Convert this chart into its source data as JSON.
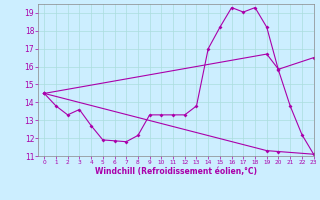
{
  "bg_color": "#cceeff",
  "line_color": "#aa00aa",
  "grid_color": "#aadddd",
  "xlabel": "Windchill (Refroidissement éolien,°C)",
  "xlim": [
    -0.5,
    23
  ],
  "ylim": [
    11,
    19.5
  ],
  "yticks": [
    11,
    12,
    13,
    14,
    15,
    16,
    17,
    18,
    19
  ],
  "xticks": [
    0,
    1,
    2,
    3,
    4,
    5,
    6,
    7,
    8,
    9,
    10,
    11,
    12,
    13,
    14,
    15,
    16,
    17,
    18,
    19,
    20,
    21,
    22,
    23
  ],
  "curve1_x": [
    0,
    1,
    2,
    3,
    4,
    5,
    6,
    7,
    8,
    9,
    10,
    11,
    12,
    13,
    14,
    15,
    16,
    17,
    18,
    19,
    20,
    21,
    22,
    23
  ],
  "curve1_y": [
    14.5,
    13.8,
    13.3,
    13.6,
    12.7,
    11.9,
    11.85,
    11.8,
    12.15,
    13.3,
    13.3,
    13.3,
    13.3,
    13.8,
    17.0,
    18.2,
    19.3,
    19.05,
    19.3,
    18.2,
    15.8,
    13.8,
    12.2,
    11.1
  ],
  "curve2_x": [
    0,
    19,
    20,
    23
  ],
  "curve2_y": [
    14.5,
    16.7,
    15.85,
    16.5
  ],
  "curve3_x": [
    0,
    19,
    20,
    23
  ],
  "curve3_y": [
    14.5,
    11.3,
    11.25,
    11.1
  ]
}
